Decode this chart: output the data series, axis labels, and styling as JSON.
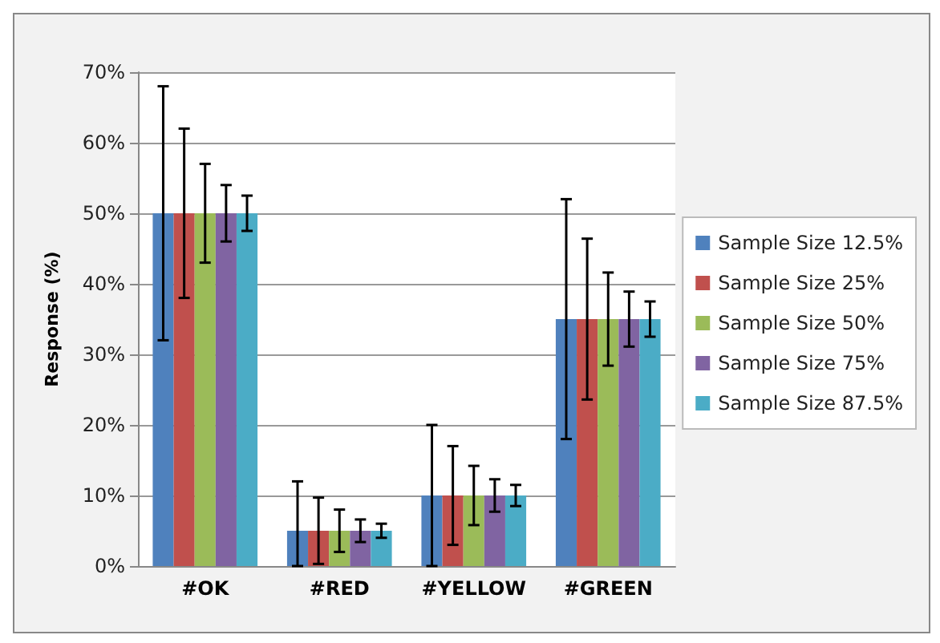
{
  "chart_data": {
    "type": "bar",
    "ylabel": "Response (%)",
    "categories": [
      "#OK",
      "#RED",
      "#YELLOW",
      "#GREEN"
    ],
    "series": [
      {
        "name": "Sample Size 12.5%",
        "color": "#4f81bd",
        "values": [
          50,
          5,
          10,
          35
        ],
        "errors": [
          18,
          [
            0,
            12
          ],
          10,
          17
        ]
      },
      {
        "name": "Sample Size 25%",
        "color": "#c0504d",
        "values": [
          50,
          5,
          10,
          35
        ],
        "errors": [
          12,
          4.7,
          7,
          11.4
        ]
      },
      {
        "name": "Sample Size 50%",
        "color": "#9bbb59",
        "values": [
          50,
          5,
          10,
          35
        ],
        "errors": [
          7,
          3,
          4.2,
          6.6
        ]
      },
      {
        "name": "Sample Size 75%",
        "color": "#8064a2",
        "values": [
          50,
          5,
          10,
          35
        ],
        "errors": [
          4,
          1.6,
          2.3,
          3.9
        ]
      },
      {
        "name": "Sample Size 87.5%",
        "color": "#4bacc6",
        "values": [
          50,
          5,
          10,
          35
        ],
        "errors": [
          2.5,
          1,
          1.5,
          2.5
        ]
      }
    ],
    "ylim": [
      0,
      70
    ],
    "yticks": [
      {
        "value": 0,
        "label": "0%"
      },
      {
        "value": 10,
        "label": "10%"
      },
      {
        "value": 20,
        "label": "20%"
      },
      {
        "value": 30,
        "label": "30%"
      },
      {
        "value": 40,
        "label": "40%"
      },
      {
        "value": 50,
        "label": "50%"
      },
      {
        "value": 60,
        "label": "60%"
      },
      {
        "value": 70,
        "label": "70%"
      }
    ],
    "grid": "y",
    "legend": "right"
  }
}
